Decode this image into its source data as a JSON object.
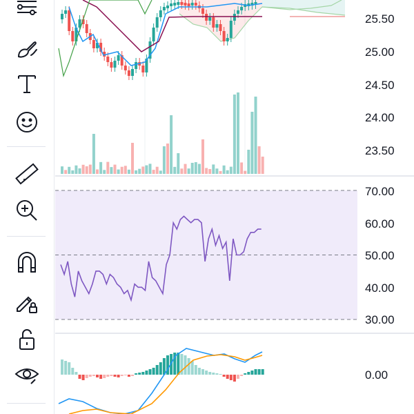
{
  "toolbar": {
    "tools": [
      {
        "name": "trend-line-tools-icon"
      },
      {
        "name": "brush-tool-icon"
      },
      {
        "name": "text-tool-icon"
      },
      {
        "name": "emoji-tool-icon"
      },
      {
        "name": "ruler-measure-icon"
      },
      {
        "name": "zoom-in-icon"
      },
      {
        "name": "magnet-mode-icon"
      },
      {
        "name": "lock-drawing-icon"
      },
      {
        "name": "unlock-icon"
      },
      {
        "name": "hide-drawings-icon"
      }
    ]
  },
  "axes": {
    "price_labels": [
      "25.50",
      "25.00",
      "24.50",
      "24.00",
      "23.50"
    ],
    "rsi_labels": [
      "70.00",
      "60.00",
      "50.00",
      "40.00",
      "30.00"
    ],
    "macd_label": "0.00"
  },
  "colors": {
    "bull": "#26a69a",
    "bear": "#ef5350",
    "rsi_line": "#7e57c2",
    "rsi_fill": "#f0ebfa",
    "macd_line": "#2196f3",
    "signal_line": "#ff9800",
    "icon": "#131722"
  },
  "chart_data": {
    "type": "line",
    "rsi": [
      47,
      44,
      48,
      41,
      37,
      45,
      42,
      40,
      38,
      41,
      45,
      45,
      44,
      41,
      44,
      43,
      41,
      40,
      38,
      39,
      36,
      41,
      40,
      40,
      39,
      48,
      43,
      42,
      40,
      38,
      47,
      50,
      60,
      58,
      61,
      62,
      61,
      60,
      61,
      61,
      60,
      48,
      55,
      58,
      53,
      56,
      52,
      54,
      42,
      55,
      50,
      50,
      51,
      55,
      57,
      57,
      58,
      58
    ]
  }
}
